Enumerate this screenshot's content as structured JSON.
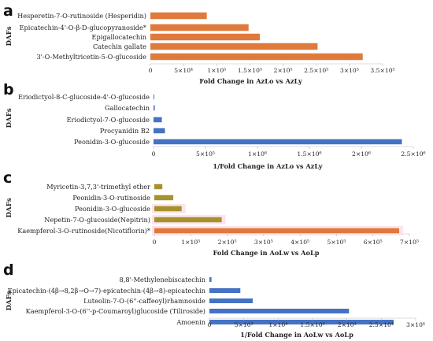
{
  "colors": {
    "orange": "#E07A3C",
    "blue": "#4472C4",
    "olive": "#A6922C",
    "olive_light": "#C4A43A",
    "pink_bg": "#FCE4EC"
  },
  "chart_data": [
    {
      "panel": "a",
      "type": "bar",
      "orientation": "horizontal",
      "ylabel": "DAFs",
      "xlabel": "Fold Change in AzLo vs AzLy",
      "categories": [
        "Hesperetin-7-O-rutinoside (Hesperidin)",
        "Epicatechin-4'-O-β-D-glucopyranoside*",
        "Epigallocatechin",
        "Catechin gallate",
        "3'-O-Methyltricetin-5-O-glucoside"
      ],
      "values": [
        85000,
        148000,
        165000,
        252000,
        320000
      ],
      "ticks": [
        "0",
        "5×10⁴",
        "1×10⁵",
        "1.5×10⁵",
        "2×10⁵",
        "2.5×10⁵",
        "3×10⁵",
        "3.5×10⁵"
      ],
      "xlim": [
        0,
        350000
      ],
      "color": "#E07A3C"
    },
    {
      "panel": "b",
      "type": "bar",
      "orientation": "horizontal",
      "ylabel": "DAFs",
      "xlabel": "1/Fold Change in AzLo vs AzLy",
      "categories": [
        "Eriodictyol-8-C-glucoside-4'-O-glucoside",
        "Gallocatechin",
        "Eriodictyol-7-O-glucoside",
        "Procyanidin B2",
        "Peonidin-3-O-glucoside"
      ],
      "values": [
        3000,
        12000,
        80000,
        110000,
        2390000
      ],
      "ticks": [
        "0",
        "5×10⁵",
        "1×10⁶",
        "1.5×10⁶",
        "2×10⁶",
        "2.5×10⁶"
      ],
      "xlim": [
        0,
        2500000
      ],
      "color": "#4472C4"
    },
    {
      "panel": "c",
      "type": "bar",
      "orientation": "horizontal",
      "ylabel": "DAFs",
      "xlabel": "Fold Change in AoLw vs AoLp",
      "categories": [
        "Myricetin-3,7,3'-trimethyl ether",
        "Peonidin-3-O-rutinoside",
        "Peonidin-3-O-glucoside",
        "Nepetin-7-O-glucoside(Nepitrin)",
        "Kaempferol-3-O-rutinoside(Nicotiflorin)*"
      ],
      "values": [
        22000,
        52000,
        75000,
        185000,
        672000
      ],
      "ticks": [
        "0",
        "1×10⁵",
        "2×10⁵",
        "3×10⁵",
        "4×10⁵",
        "5×10⁵",
        "6×10⁵",
        "7×10⁵"
      ],
      "xlim": [
        0,
        700000
      ],
      "color": "#A6922C"
    },
    {
      "panel": "d",
      "type": "bar",
      "orientation": "horizontal",
      "ylabel": "DAFs",
      "xlabel": "1/Fold Change in AoLw vs AoLp",
      "categories": [
        "8,8'-Methylenebiscatechin",
        "Epicatechin-(4β→8,2β→O→7)-epicatechin-(4β→8)-epicatechin",
        "Luteolin-7-O-(6''-caffeoyl)rhamnoside",
        "Kaempferol-3-O-(6''-p-Coumaroyl)glucoside (Tiliroside)",
        "Amoenin"
      ],
      "values": [
        300,
        4500,
        6300,
        20300,
        26800
      ],
      "ticks": [
        "0",
        "5×10³",
        "1×10⁴",
        "1.5×10⁴",
        "2×10⁴",
        "2.5×10⁴",
        "3×10⁴"
      ],
      "xlim": [
        0,
        30000
      ],
      "color": "#4472C4"
    }
  ]
}
